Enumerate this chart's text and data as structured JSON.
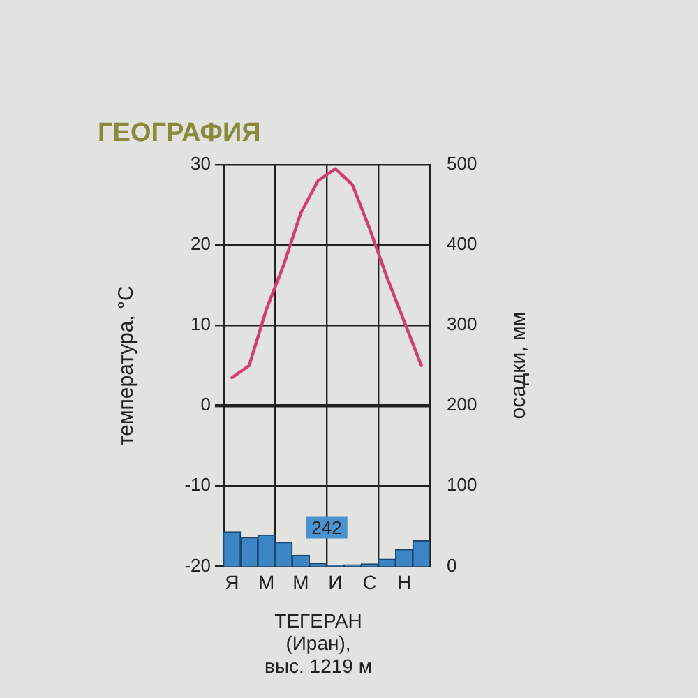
{
  "chart_data": {
    "type": "line",
    "title": "ТЕГЕРАН\n(Иран),\nвыс. 1219 м",
    "ylabel": "температура, °С",
    "y2label": "осадки, мм",
    "annotations": [
      "242",
      "ГЕОГРАФИЯ"
    ],
    "categories": [
      "Я",
      null,
      "М",
      null,
      "М",
      null,
      "И",
      null,
      "С",
      null,
      "Н",
      null
    ],
    "series": [
      {
        "type": "bar",
        "axis": "y2",
        "color": "#3d86c6",
        "values": [
          43,
          36,
          39,
          30,
          14,
          4,
          1,
          2,
          3,
          9,
          21,
          32
        ]
      },
      {
        "color": "#d23c6e",
        "values": [
          3.5,
          5,
          12,
          17.5,
          24,
          28,
          29.5,
          27.5,
          22,
          16,
          10.5,
          5
        ]
      }
    ],
    "ylim": [
      -20,
      30
    ],
    "yticks": [
      -20,
      -10,
      0,
      10,
      20,
      30
    ],
    "y2lim": [
      0,
      500
    ],
    "y2ticks": [
      0,
      100,
      200,
      300,
      400,
      500
    ],
    "grid": true
  }
}
